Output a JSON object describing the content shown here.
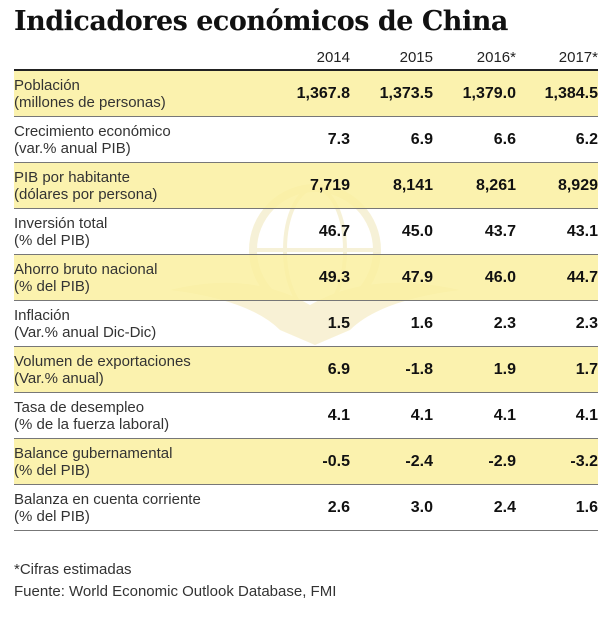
{
  "title": "Indicadores económicos de China",
  "colors": {
    "highlight_row": "#faf0a0",
    "rule": "#222222"
  },
  "chart_data": {
    "type": "table",
    "columns": [
      "2014",
      "2015",
      "2016*",
      "2017*"
    ],
    "rows": [
      {
        "label": "Población",
        "sublabel": "(millones de personas)",
        "values": [
          "1,367.8",
          "1,373.5",
          "1,379.0",
          "1,384.5"
        ],
        "highlight": true
      },
      {
        "label": "Crecimiento económico",
        "sublabel": "(var.% anual PIB)",
        "values": [
          "7.3",
          "6.9",
          "6.6",
          "6.2"
        ],
        "highlight": false
      },
      {
        "label": "PIB por habitante",
        "sublabel": "(dólares por persona)",
        "values": [
          "7,719",
          "8,141",
          "8,261",
          "8,929"
        ],
        "highlight": true
      },
      {
        "label": "Inversión total",
        "sublabel": "(% del PIB)",
        "values": [
          "46.7",
          "45.0",
          "43.7",
          "43.1"
        ],
        "highlight": false
      },
      {
        "label": "Ahorro bruto nacional",
        "sublabel": "(% del PIB)",
        "values": [
          "49.3",
          "47.9",
          "46.0",
          "44.7"
        ],
        "highlight": true
      },
      {
        "label": "Inflación",
        "sublabel": "(Var.% anual Dic-Dic)",
        "values": [
          "1.5",
          "1.6",
          "2.3",
          "2.3"
        ],
        "highlight": false
      },
      {
        "label": "Volumen de exportaciones",
        "sublabel": "(Var.% anual)",
        "values": [
          "6.9",
          "-1.8",
          "1.9",
          "1.7"
        ],
        "highlight": true
      },
      {
        "label": "Tasa de desempleo",
        "sublabel": "(% de la fuerza laboral)",
        "values": [
          "4.1",
          "4.1",
          "4.1",
          "4.1"
        ],
        "highlight": false
      },
      {
        "label": "Balance gubernamental",
        "sublabel": "(% del PIB)",
        "values": [
          "-0.5",
          "-2.4",
          "-2.9",
          "-3.2"
        ],
        "highlight": true
      },
      {
        "label": "Balanza en cuenta corriente",
        "sublabel": "(% del PIB)",
        "values": [
          "2.6",
          "3.0",
          "2.4",
          "1.6"
        ],
        "highlight": false
      }
    ]
  },
  "footnote": "*Cifras estimadas",
  "source": "Fuente: World Economic Outlook Database, FMI"
}
